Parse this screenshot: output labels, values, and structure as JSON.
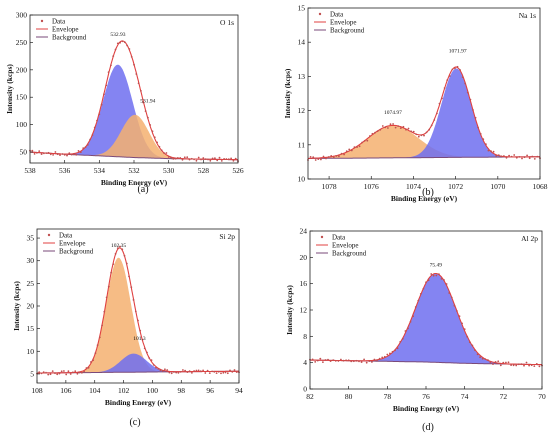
{
  "colors": {
    "axis": "#222222",
    "data_point": "#c05050",
    "envelope": "#e04040",
    "background_line": "#7a4a7a",
    "fill_blue": "#6f6ff0",
    "fill_orange": "#f5b070"
  },
  "chart_data": [
    {
      "type": "scatter",
      "panel_label": "(a)",
      "corner_label": "O 1s",
      "xlabel": "Binding Energy (eV)",
      "ylabel": "Intensity (kcps)",
      "xlim": [
        538,
        526
      ],
      "ylim": [
        30,
        300
      ],
      "xticks": [
        538,
        536,
        534,
        532,
        530,
        528,
        526
      ],
      "yticks": [
        50,
        100,
        150,
        200,
        250,
        300
      ],
      "legend": [
        "Data",
        "Envelope",
        "Background"
      ],
      "legend_position": "top-left",
      "background": {
        "x": [
          538,
          536,
          534,
          532,
          530,
          528,
          526
        ],
        "y": [
          50,
          46,
          43,
          40,
          38,
          37,
          36
        ]
      },
      "peaks": [
        {
          "label": "532.93",
          "center": 532.93,
          "height": 168,
          "sigma": 0.85,
          "fill": "blue"
        },
        {
          "label": "531.94",
          "center": 531.94,
          "height": 78,
          "sigma": 0.8,
          "fill": "orange"
        }
      ],
      "annotations": [
        {
          "text": "532.93",
          "x": 532.93,
          "y": 262
        },
        {
          "text": "531.94",
          "x": 531.2,
          "y": 140
        }
      ]
    },
    {
      "type": "scatter",
      "panel_label": "(b)",
      "corner_label": "Na 1s",
      "xlabel": "Binding Energy (eV)",
      "ylabel": "Intensity (kcps)",
      "xlim": [
        1079,
        1068
      ],
      "ylim": [
        10,
        15
      ],
      "xticks": [
        1078,
        1076,
        1074,
        1072,
        1070,
        1068
      ],
      "yticks": [
        10,
        11,
        12,
        13,
        14,
        15
      ],
      "legend": [
        "Data",
        "Envelope",
        "Background"
      ],
      "legend_position": "top-left",
      "background": {
        "x": [
          1079,
          1068
        ],
        "y": [
          10.6,
          10.65
        ]
      },
      "peaks": [
        {
          "label": "1074.97",
          "center": 1074.97,
          "height": 0.95,
          "sigma": 1.2,
          "fill": "orange"
        },
        {
          "label": "1071.97",
          "center": 1071.97,
          "height": 2.6,
          "sigma": 0.7,
          "fill": "blue"
        }
      ],
      "annotations": [
        {
          "text": "1074.97",
          "x": 1074.97,
          "y": 11.9
        },
        {
          "text": "1071.97",
          "x": 1071.9,
          "y": 13.7
        }
      ]
    },
    {
      "type": "scatter",
      "panel_label": "(c)",
      "corner_label": "Si 2p",
      "xlabel": "Binding Energy (eV)",
      "ylabel": "Intensity (kcps)",
      "xlim": [
        108,
        94
      ],
      "ylim": [
        3,
        37
      ],
      "xticks": [
        108,
        106,
        104,
        102,
        100,
        98,
        96,
        94
      ],
      "yticks": [
        5,
        10,
        15,
        20,
        25,
        30,
        35
      ],
      "legend": [
        "Data",
        "Envelope",
        "Background"
      ],
      "legend_position": "top-left",
      "background": {
        "x": [
          108,
          94
        ],
        "y": [
          5.2,
          5.6
        ]
      },
      "peaks": [
        {
          "label": "102.35",
          "center": 102.35,
          "height": 25.3,
          "sigma": 0.85,
          "fill": "orange"
        },
        {
          "label": "101.3",
          "center": 101.3,
          "height": 4.1,
          "sigma": 0.9,
          "fill": "blue"
        }
      ],
      "annotations": [
        {
          "text": "102.35",
          "x": 102.35,
          "y": 33
        },
        {
          "text": "101.3",
          "x": 100.9,
          "y": 12.5
        }
      ]
    },
    {
      "type": "scatter",
      "panel_label": "(d)",
      "corner_label": "Al 2p",
      "xlabel": "Binding Energy (eV)",
      "ylabel": "Intensity (kcps)",
      "xlim": [
        82,
        70
      ],
      "ylim": [
        0,
        24
      ],
      "xticks": [
        82,
        80,
        78,
        76,
        74,
        72,
        70
      ],
      "yticks": [
        0,
        4,
        8,
        12,
        16,
        20,
        24
      ],
      "legend": [
        "Data",
        "Envelope",
        "Background"
      ],
      "legend_position": "top-left",
      "background": {
        "x": [
          82,
          80,
          78,
          76,
          74,
          72,
          70
        ],
        "y": [
          4.4,
          4.3,
          4.2,
          4.1,
          3.9,
          3.8,
          3.7
        ]
      },
      "peaks": [
        {
          "label": "75.49",
          "center": 75.49,
          "height": 13.5,
          "sigma": 1.05,
          "fill": "blue"
        }
      ],
      "annotations": [
        {
          "text": "75.49",
          "x": 75.49,
          "y": 18.6
        }
      ]
    }
  ]
}
